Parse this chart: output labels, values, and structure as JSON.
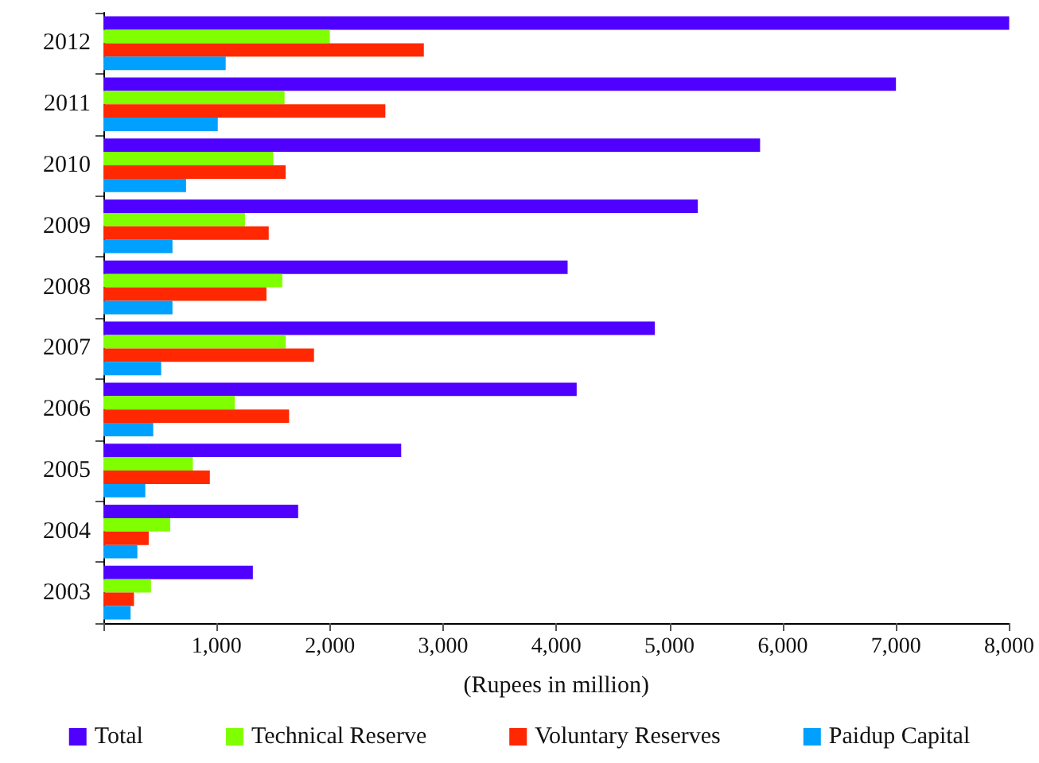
{
  "chart_data": {
    "type": "bar",
    "orientation": "horizontal",
    "xlabel": "(Rupees in million)",
    "categories": [
      "2012",
      "2011",
      "2010",
      "2009",
      "2008",
      "2007",
      "2006",
      "2005",
      "2004",
      "2003"
    ],
    "series": [
      {
        "name": "Total",
        "color": "#5000ff",
        "values": [
          8000,
          7000,
          5800,
          5250,
          4100,
          4870,
          4180,
          2630,
          1720,
          1320
        ]
      },
      {
        "name": "Technical Reserve",
        "color": "#80ff00",
        "values": [
          2000,
          1600,
          1500,
          1250,
          1580,
          1610,
          1160,
          790,
          590,
          420
        ]
      },
      {
        "name": "Voluntary Reserves",
        "color": "#ff2800",
        "values": [
          2830,
          2490,
          1610,
          1460,
          1440,
          1860,
          1640,
          940,
          400,
          270
        ]
      },
      {
        "name": "Paidup Capital",
        "color": "#00a0ff",
        "values": [
          1080,
          1010,
          730,
          610,
          610,
          510,
          440,
          370,
          300,
          240
        ]
      }
    ],
    "xlim": [
      0,
      8000
    ],
    "xticks": [
      {
        "value": 0,
        "label": null
      },
      {
        "value": 1000,
        "label": "1,000"
      },
      {
        "value": 2000,
        "label": "2,000"
      },
      {
        "value": 3000,
        "label": "3,000"
      },
      {
        "value": 4000,
        "label": "4,000"
      },
      {
        "value": 5000,
        "label": "5,000"
      },
      {
        "value": 6000,
        "label": "6,000"
      },
      {
        "value": 7000,
        "label": "7,000"
      },
      {
        "value": 8000,
        "label": "8,000"
      }
    ],
    "grid": false,
    "legend": "bottom"
  }
}
